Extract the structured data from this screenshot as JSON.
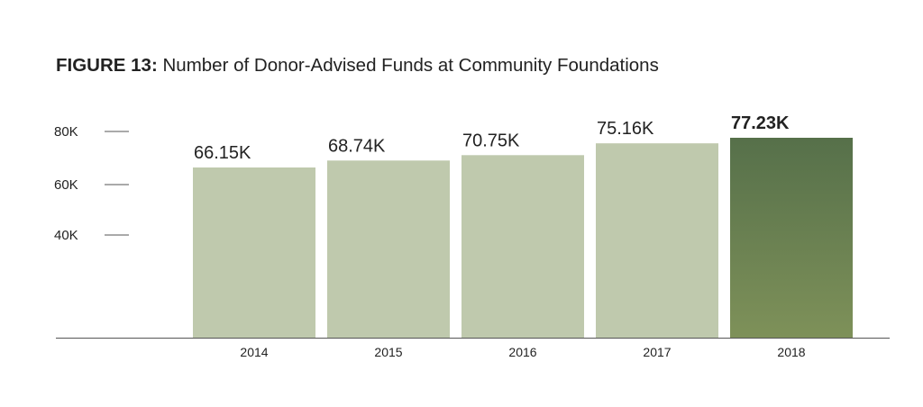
{
  "title": {
    "label": "FIGURE 13:",
    "text": "Number of Donor-Advised Funds at Community Foundations"
  },
  "chart_data": {
    "type": "bar",
    "categories": [
      "2014",
      "2015",
      "2016",
      "2017",
      "2018"
    ],
    "values": [
      66.15,
      68.74,
      70.75,
      75.16,
      77.23
    ],
    "value_labels": [
      "66.15K",
      "68.74K",
      "70.75K",
      "75.16K",
      "77.23K"
    ],
    "highlight_index": 4,
    "yticks": [
      {
        "value": 80,
        "label": "80K"
      },
      {
        "value": 60,
        "label": "60K"
      },
      {
        "value": 40,
        "label": "40K"
      }
    ],
    "ylim": [
      0,
      80
    ],
    "y_scale_note": "non-linear tick spacing; baseline at bottom axis",
    "grid": false,
    "colors": {
      "bar": "#bfc9ad",
      "highlight_top": "#56704a",
      "highlight_bottom": "#7e9159",
      "axis": "#555555",
      "tick": "#555555"
    }
  }
}
